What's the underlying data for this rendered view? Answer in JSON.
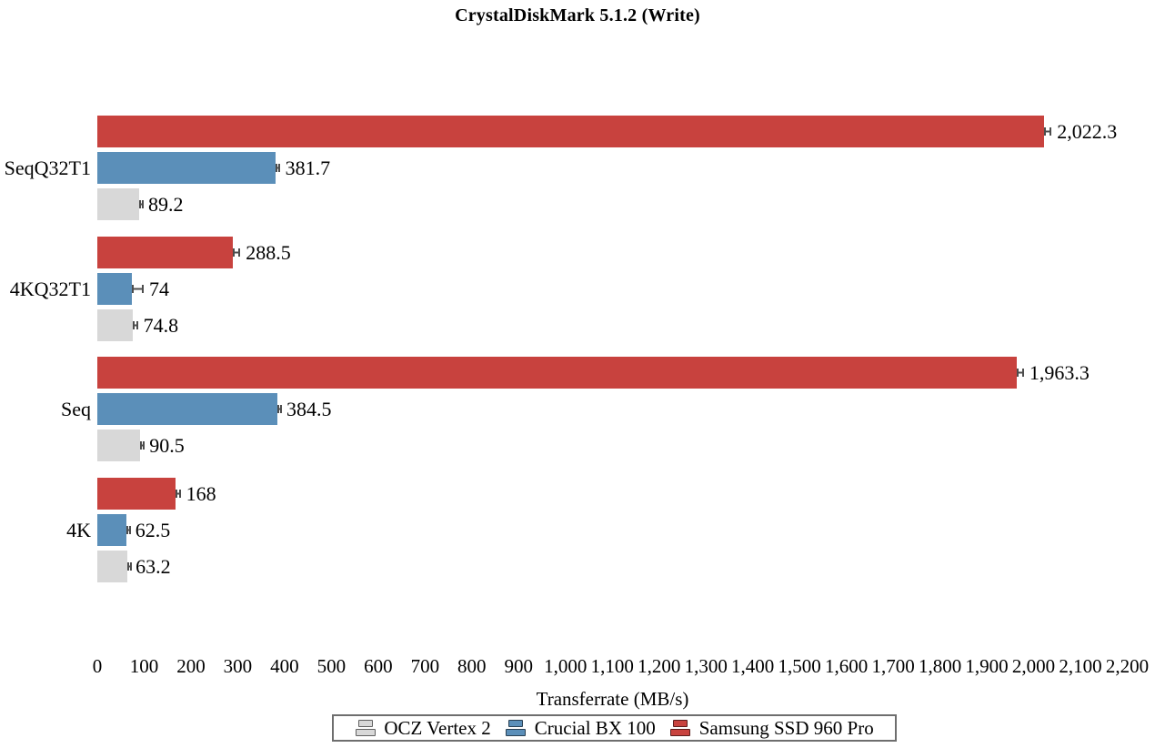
{
  "chart": {
    "title": "CrystalDiskMark 5.1.2 (Write)",
    "xlabel": "Transferrate (MB/s)"
  },
  "chart_data": {
    "type": "bar",
    "orientation": "horizontal",
    "title": "CrystalDiskMark 5.1.2 (Write)",
    "xlabel": "Transferrate (MB/s)",
    "xlim": [
      0,
      2200
    ],
    "xtick_step": 100,
    "xticks": [
      0,
      100,
      200,
      300,
      400,
      500,
      600,
      700,
      800,
      900,
      1000,
      1100,
      1200,
      1300,
      1400,
      1500,
      1600,
      1700,
      1800,
      1900,
      2000,
      2100,
      2200
    ],
    "grid": false,
    "categories": [
      "SeqQ32T1",
      "4KQ32T1",
      "Seq",
      "4K"
    ],
    "series": [
      {
        "name": "Samsung SSD 960 Pro",
        "color": "#c8423e",
        "values": [
          2022.3,
          288.5,
          1963.3,
          168
        ],
        "value_labels": [
          "2,022.3",
          "288.5",
          "1,963.3",
          "168"
        ],
        "errors": [
          16,
          17,
          16,
          10
        ]
      },
      {
        "name": "Crucial BX 100",
        "color": "#5b8fb9",
        "values": [
          381.7,
          74,
          384.5,
          62.5
        ],
        "value_labels": [
          "381.7",
          "74",
          "384.5",
          "62.5"
        ],
        "errors": [
          8,
          25,
          8,
          7
        ]
      },
      {
        "name": "OCZ Vertex 2",
        "color": "#d8d8d8",
        "values": [
          89.2,
          74.8,
          90.5,
          63.2
        ],
        "value_labels": [
          "89.2",
          "74.8",
          "90.5",
          "63.2"
        ],
        "errors": [
          8,
          12,
          9,
          7
        ]
      }
    ],
    "legend_position": "bottom",
    "legend": [
      {
        "label": "OCZ Vertex 2",
        "color": "#d8d8d8"
      },
      {
        "label": "Crucial BX 100",
        "color": "#5b8fb9"
      },
      {
        "label": "Samsung SSD 960 Pro",
        "color": "#c8423e"
      }
    ],
    "error_bar_color": "#4d4d4d"
  }
}
